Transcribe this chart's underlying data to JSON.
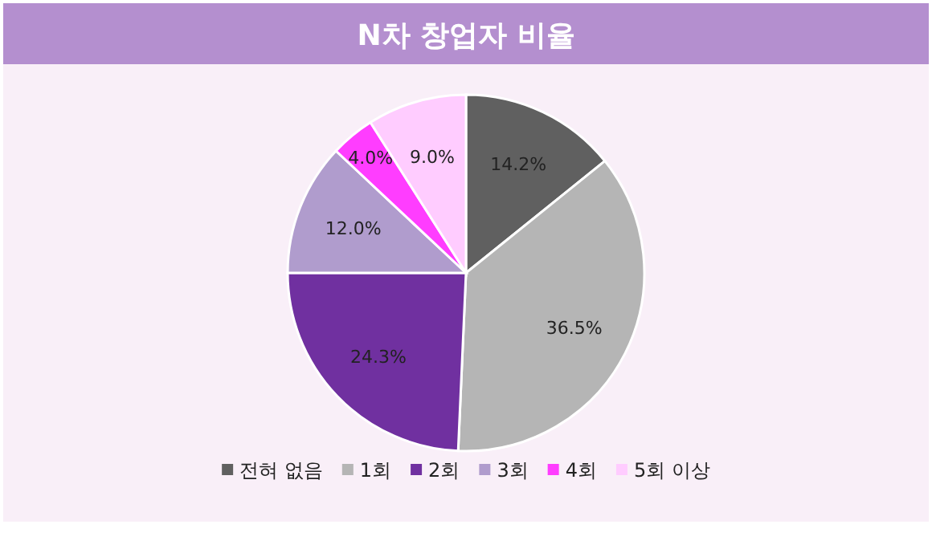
{
  "chart_data": {
    "type": "pie",
    "title": "N차 창업자 비율",
    "categories": [
      "전혀 없음",
      "1회",
      "2회",
      "3회",
      "4회",
      "5회 이상"
    ],
    "values": [
      14.2,
      36.5,
      24.3,
      12.0,
      4.0,
      9.0
    ],
    "value_labels": [
      "14.2%",
      "36.5%",
      "24.3%",
      "12.0%",
      "4.0%",
      "9.0%"
    ],
    "colors": [
      "#606060",
      "#b5b5b5",
      "#7030a0",
      "#b09ccd",
      "#ff3dff",
      "#ffccff"
    ],
    "legend": "bottom"
  }
}
